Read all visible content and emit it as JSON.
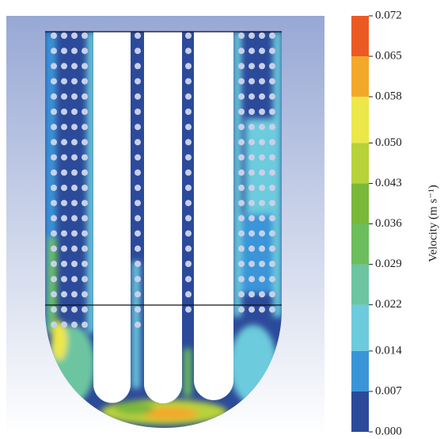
{
  "chart_data": {
    "type": "colorbar",
    "ylabel": "Velocity (m s⁻¹)",
    "ylim": [
      0,
      0.072
    ],
    "yticks": [
      {
        "value": 0,
        "label": "0.000"
      },
      0.007,
      0.014,
      0.022,
      0.029,
      0.036,
      0.043,
      {
        "value": 0.05,
        "label": "0.050"
      },
      0.058,
      0.065,
      0.072
    ],
    "colors": [
      "#2c4a9a",
      "#3a95d8",
      "#6ccbdc",
      "#6cc5a0",
      "#6cbd5c",
      "#7ab83a",
      "#b8d23a",
      "#ece84a",
      "#f4a82a",
      "#ec5a24"
    ]
  }
}
